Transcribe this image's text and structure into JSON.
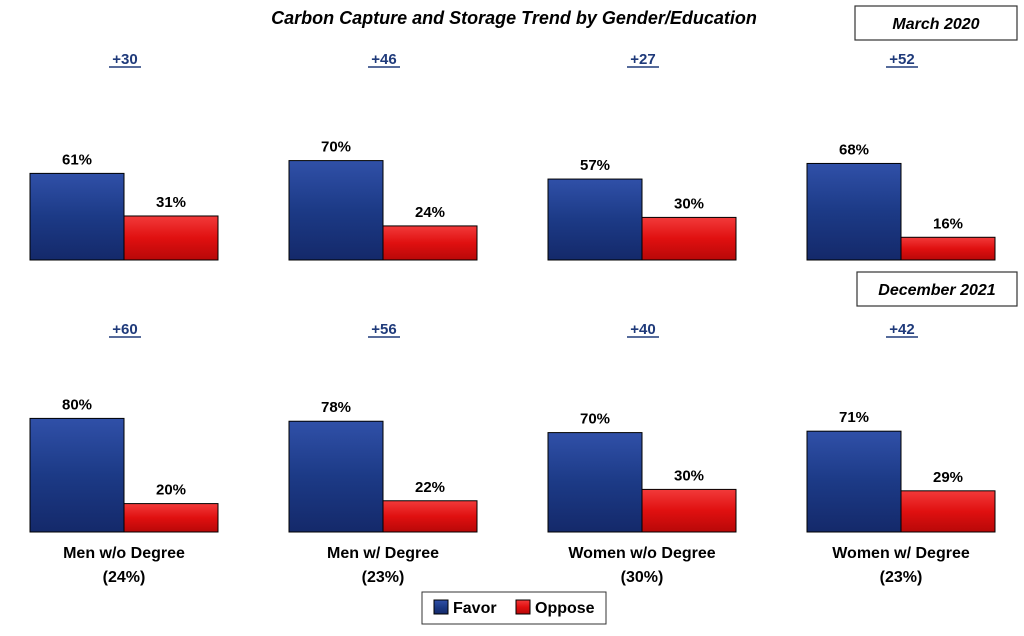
{
  "chart_data": {
    "type": "bar",
    "title": "Carbon Capture and Storage Trend by Gender/Education",
    "categories": [
      {
        "name": "Men w/o Degree",
        "share": "(24%)"
      },
      {
        "name": "Men w/ Degree",
        "share": "(23%)"
      },
      {
        "name": "Women w/o Degree",
        "share": "(30%)"
      },
      {
        "name": "Women w/ Degree",
        "share": "(23%)"
      }
    ],
    "panels": [
      {
        "period": "March 2020",
        "margins": [
          "+30",
          "+46",
          "+27",
          "+52"
        ],
        "series": [
          {
            "name": "Favor",
            "values": [
              61,
              70,
              57,
              68
            ],
            "labels": [
              "61%",
              "70%",
              "57%",
              "68%"
            ]
          },
          {
            "name": "Oppose",
            "values": [
              31,
              24,
              30,
              16
            ],
            "labels": [
              "31%",
              "24%",
              "30%",
              "16%"
            ]
          }
        ]
      },
      {
        "period": "December 2021",
        "margins": [
          "+60",
          "+56",
          "+40",
          "+42"
        ],
        "series": [
          {
            "name": "Favor",
            "values": [
              80,
              78,
              70,
              71
            ],
            "labels": [
              "80%",
              "78%",
              "70%",
              "71%"
            ]
          },
          {
            "name": "Oppose",
            "values": [
              20,
              22,
              30,
              29
            ],
            "labels": [
              "20%",
              "22%",
              "30%",
              "29%"
            ]
          }
        ]
      }
    ],
    "legend": {
      "placement": "bottom",
      "items": [
        {
          "name": "Favor",
          "color": "#1c3a86"
        },
        {
          "name": "Oppose",
          "color": "#e01010"
        }
      ]
    },
    "colors": {
      "favor": "#1c3a86",
      "oppose": "#e01010",
      "margin": "#1f3a7a"
    },
    "ylim": [
      0,
      100
    ]
  }
}
